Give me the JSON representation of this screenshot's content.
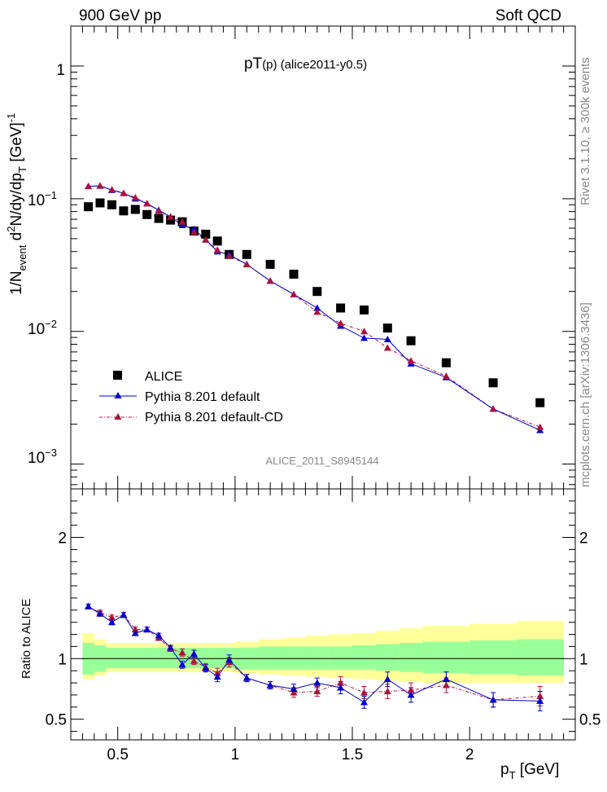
{
  "header": {
    "left": "900 GeV pp",
    "right": "Soft QCD"
  },
  "side_text": {
    "upper": "Rivet 3.1.10, ≥ 300k events",
    "lower": "mcplots.cern.ch [arXiv:1306.3436]"
  },
  "colors": {
    "data": "#000000",
    "pythia_default": "#0000cc",
    "pythia_cd": "#b0103a",
    "band_inner": "#99ff99",
    "band_outer": "#ffff99"
  },
  "chart_data": [
    {
      "type": "scatter",
      "title_main": "pT",
      "title_sub": "(p) (alice2011-y0.5)",
      "watermark": "ALICE_2011_S8945144",
      "ylabel": {
        "prefix": "1/N",
        "sub1": "event",
        "mid": " d",
        "sup1": "2",
        "rest": "N/dy/dp",
        "sub2": "T",
        "unit": " [GeV]",
        "sup2": "-1"
      },
      "yscale": "log",
      "ylim": [
        0.00065,
        2.0
      ],
      "xlim": [
        0.3,
        2.45
      ],
      "ytick_labels": {
        "one": "1",
        "ten": "10",
        "m1": "−1",
        "m2": "−2",
        "m3": "−3"
      },
      "legend": {
        "alice": "ALICE",
        "default": "Pythia 8.201 default",
        "cd": "Pythia 8.201 default-CD"
      },
      "x": [
        0.375,
        0.425,
        0.475,
        0.525,
        0.575,
        0.625,
        0.675,
        0.725,
        0.775,
        0.825,
        0.875,
        0.925,
        0.975,
        1.05,
        1.15,
        1.25,
        1.35,
        1.45,
        1.55,
        1.65,
        1.75,
        1.9,
        2.1,
        2.3
      ],
      "series": [
        {
          "name": "ALICE",
          "values": [
            0.087,
            0.093,
            0.09,
            0.081,
            0.083,
            0.076,
            0.071,
            0.069,
            0.067,
            0.057,
            0.054,
            0.048,
            0.038,
            0.038,
            0.032,
            0.027,
            0.02,
            0.015,
            0.0145,
            0.0106,
            0.0085,
            0.0058,
            0.0041,
            0.0029
          ]
        },
        {
          "name": "Pythia 8.201 default",
          "values": [
            0.124,
            0.125,
            0.116,
            0.11,
            0.1,
            0.092,
            0.082,
            0.073,
            0.063,
            0.059,
            0.049,
            0.04,
            0.038,
            0.032,
            0.024,
            0.019,
            0.015,
            0.011,
            0.0089,
            0.0087,
            0.0057,
            0.0045,
            0.0026,
            0.0018
          ]
        },
        {
          "name": "Pythia 8.201 default-CD",
          "values": [
            0.124,
            0.125,
            0.117,
            0.11,
            0.102,
            0.092,
            0.081,
            0.073,
            0.067,
            0.056,
            0.049,
            0.041,
            0.037,
            0.032,
            0.024,
            0.019,
            0.014,
            0.0115,
            0.01,
            0.0075,
            0.006,
            0.0046,
            0.0026,
            0.0019
          ]
        }
      ]
    },
    {
      "type": "scatter",
      "ylabel": "Ratio to ALICE",
      "xlabel": "p",
      "xlabel_sub": "T",
      "xlabel_unit": " [GeV]",
      "ylim": [
        0.33,
        2.4
      ],
      "xlim": [
        0.3,
        2.45
      ],
      "xticks": [
        0.5,
        1,
        1.5,
        2
      ],
      "xtick_labels": [
        "0.5",
        "1",
        "1.5",
        "2"
      ],
      "yticks": [
        0.5,
        1,
        2
      ],
      "ytick_labels": [
        "0.5",
        "1",
        "2"
      ],
      "band_edges": [
        0.35,
        0.4,
        0.45,
        0.5,
        0.55,
        0.6,
        0.65,
        0.7,
        0.75,
        0.8,
        0.85,
        0.9,
        0.95,
        1.0,
        1.1,
        1.2,
        1.3,
        1.4,
        1.5,
        1.6,
        1.7,
        1.8,
        2.0,
        2.2,
        2.4
      ],
      "band_inner_lo": [
        0.87,
        0.89,
        0.92,
        0.92,
        0.92,
        0.92,
        0.92,
        0.92,
        0.92,
        0.92,
        0.92,
        0.92,
        0.92,
        0.91,
        0.91,
        0.91,
        0.91,
        0.91,
        0.91,
        0.9,
        0.89,
        0.88,
        0.87,
        0.86
      ],
      "band_inner_hi": [
        1.13,
        1.11,
        1.09,
        1.09,
        1.09,
        1.09,
        1.09,
        1.09,
        1.09,
        1.09,
        1.09,
        1.09,
        1.09,
        1.09,
        1.1,
        1.1,
        1.1,
        1.1,
        1.11,
        1.12,
        1.13,
        1.14,
        1.15,
        1.16
      ],
      "band_outer_lo": [
        0.83,
        0.86,
        0.89,
        0.89,
        0.89,
        0.89,
        0.89,
        0.89,
        0.89,
        0.89,
        0.89,
        0.89,
        0.89,
        0.88,
        0.87,
        0.86,
        0.85,
        0.84,
        0.83,
        0.82,
        0.81,
        0.8,
        0.8,
        0.8
      ],
      "band_outer_hi": [
        1.21,
        1.16,
        1.13,
        1.13,
        1.13,
        1.13,
        1.13,
        1.13,
        1.13,
        1.13,
        1.13,
        1.13,
        1.13,
        1.14,
        1.16,
        1.17,
        1.19,
        1.2,
        1.21,
        1.23,
        1.25,
        1.27,
        1.29,
        1.31
      ],
      "series": [
        {
          "name": "Pythia 8.201 default",
          "values": [
            1.43,
            1.37,
            1.3,
            1.36,
            1.21,
            1.24,
            1.19,
            1.09,
            0.95,
            1.04,
            0.92,
            0.85,
            0.99,
            0.84,
            0.78,
            0.75,
            0.8,
            0.76,
            0.64,
            0.83,
            0.7,
            0.83,
            0.66,
            0.65
          ],
          "errors": [
            0.02,
            0.02,
            0.02,
            0.02,
            0.02,
            0.02,
            0.02,
            0.02,
            0.03,
            0.03,
            0.03,
            0.04,
            0.04,
            0.03,
            0.03,
            0.04,
            0.04,
            0.05,
            0.05,
            0.06,
            0.06,
            0.06,
            0.06,
            0.08
          ]
        },
        {
          "name": "Pythia 8.201 default-CD",
          "values": [
            1.43,
            1.38,
            1.34,
            1.36,
            1.24,
            1.24,
            1.17,
            1.08,
            1.05,
            0.98,
            0.93,
            0.88,
            0.97,
            0.84,
            0.78,
            0.72,
            0.73,
            0.8,
            0.72,
            0.73,
            0.74,
            0.78,
            0.66,
            0.69
          ],
          "errors": [
            0.02,
            0.02,
            0.02,
            0.02,
            0.02,
            0.02,
            0.02,
            0.02,
            0.03,
            0.03,
            0.03,
            0.04,
            0.04,
            0.03,
            0.03,
            0.04,
            0.04,
            0.05,
            0.05,
            0.06,
            0.06,
            0.06,
            0.06,
            0.08
          ]
        }
      ]
    }
  ]
}
